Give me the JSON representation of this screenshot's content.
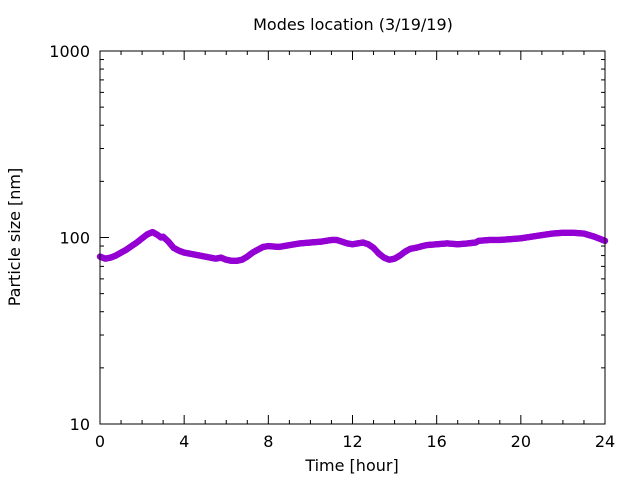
{
  "chart_data": {
    "type": "scatter",
    "title": "Modes location (3/19/19)",
    "xlabel": "Time [hour]",
    "ylabel": "Particle size [nm]",
    "xlim": [
      0,
      24
    ],
    "ylim": [
      10,
      1000
    ],
    "yscale": "log",
    "xticks": [
      0,
      4,
      8,
      12,
      16,
      20,
      24
    ],
    "yticks": [
      10,
      100,
      1000
    ],
    "grid": false,
    "legend": "none",
    "marker_color": "#9400d3",
    "series": [
      {
        "x": [
          0,
          0.25,
          0.5,
          0.75,
          1.0,
          1.25,
          1.5,
          1.75,
          2.0,
          2.25,
          2.5,
          2.75,
          2.9,
          3.0,
          3.25,
          3.5,
          3.75,
          4.0,
          4.25,
          4.5,
          5.0,
          5.5,
          5.75,
          6.0,
          6.25,
          6.5,
          6.75,
          7.0,
          7.25,
          7.5,
          7.75,
          8.0,
          8.5,
          9.0,
          9.5,
          10.0,
          10.5,
          11.0,
          11.25,
          11.5,
          11.75,
          12.0,
          12.25,
          12.5,
          12.75,
          13.0,
          13.25,
          13.5,
          13.75,
          14.0,
          14.25,
          14.5,
          14.75,
          15.0,
          15.5,
          16.0,
          16.5,
          17.0,
          17.5,
          17.85,
          18.0,
          18.5,
          19.0,
          19.5,
          20.0,
          20.5,
          21.0,
          21.5,
          22.0,
          22.5,
          23.0,
          23.5,
          24.0
        ],
        "y": [
          79,
          77,
          78,
          80,
          83,
          86,
          90,
          94,
          99,
          104,
          107,
          103,
          100,
          101,
          95,
          88,
          85,
          83,
          82,
          81,
          79,
          77,
          78,
          76,
          75,
          75,
          76,
          79,
          83,
          86,
          89,
          90,
          89,
          91,
          93,
          94,
          95,
          97,
          97,
          95,
          93,
          92,
          93,
          94,
          92,
          88,
          82,
          78,
          76,
          77,
          80,
          84,
          87,
          88,
          91,
          92,
          93,
          92,
          93,
          94,
          96,
          97,
          97,
          98,
          99,
          101,
          103,
          105,
          106,
          106,
          105,
          101,
          96
        ]
      }
    ]
  }
}
